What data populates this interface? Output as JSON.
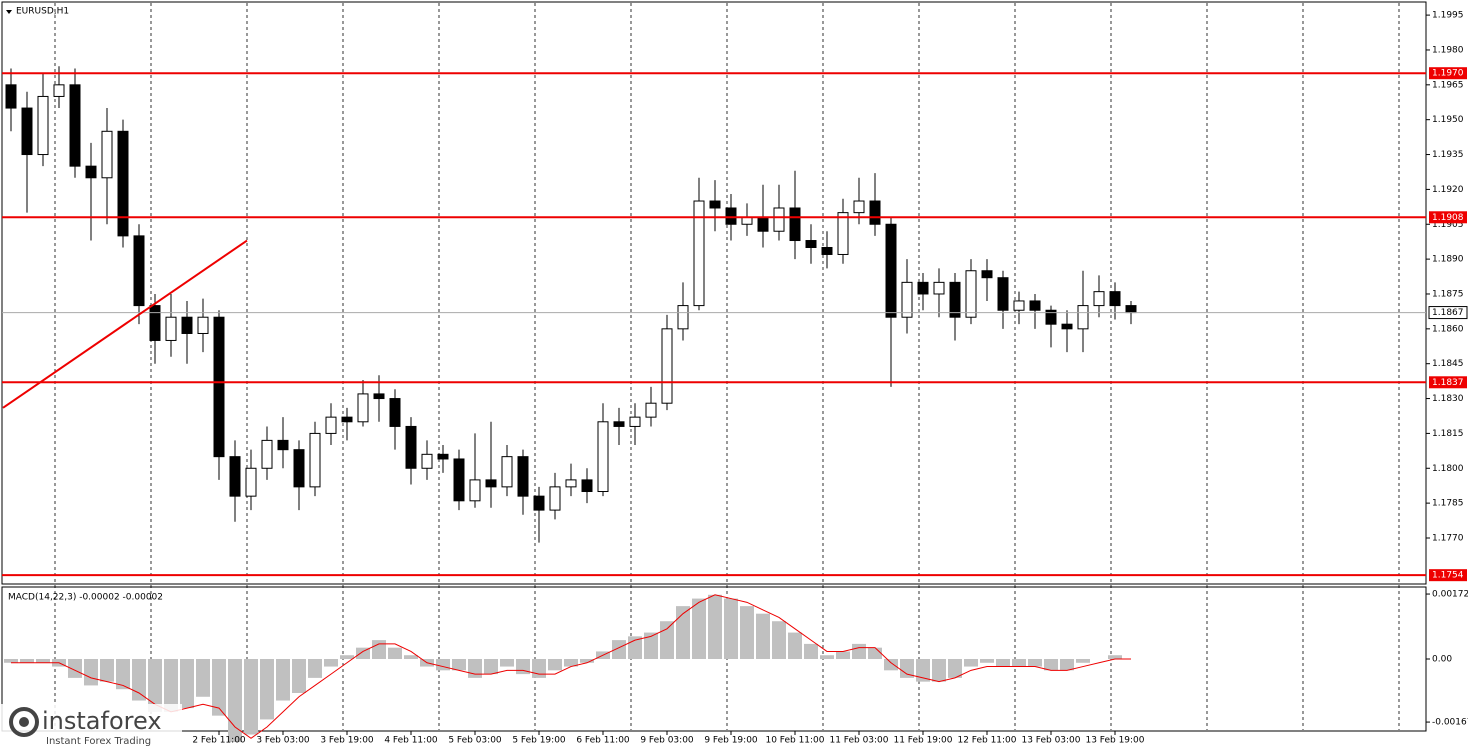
{
  "watermark": {
    "brand": "instaforex",
    "tagline": "Instant Forex Trading"
  },
  "chart_data": [
    {
      "type": "candlestick",
      "title": "EURUSD,H1",
      "x": [
        0,
        4,
        8,
        12,
        16,
        20,
        24,
        28,
        32,
        36,
        40,
        44,
        48,
        52,
        56,
        60,
        64,
        68,
        72,
        76,
        80,
        84,
        88,
        92,
        96,
        100,
        104,
        108,
        112,
        116,
        120,
        124,
        128,
        132,
        136,
        140,
        144,
        148,
        152,
        156,
        160,
        164,
        168,
        172,
        176,
        180,
        184,
        188,
        192,
        196,
        200,
        204,
        208,
        212,
        216,
        220,
        224,
        228,
        232,
        236,
        240,
        244,
        248,
        252,
        256,
        260,
        264,
        268,
        272,
        276,
        280
      ],
      "open": [
        1.1965,
        1.1955,
        1.1935,
        1.196,
        1.1965,
        1.193,
        1.1925,
        1.1945,
        1.19,
        1.187,
        1.1855,
        1.1865,
        1.1858,
        1.1865,
        1.1805,
        1.1788,
        1.18,
        1.1812,
        1.1808,
        1.1792,
        1.1815,
        1.1822,
        1.182,
        1.1832,
        1.183,
        1.1818,
        1.18,
        1.1806,
        1.1804,
        1.1786,
        1.1795,
        1.1792,
        1.1805,
        1.1788,
        1.1782,
        1.1792,
        1.1795,
        1.179,
        1.182,
        1.1818,
        1.1822,
        1.1828,
        1.186,
        1.187,
        1.1915,
        1.1912,
        1.1905,
        1.1908,
        1.1902,
        1.1912,
        1.1898,
        1.1895,
        1.1892,
        1.191,
        1.1915,
        1.1905,
        1.1865,
        1.188,
        1.1875,
        1.188,
        1.1865,
        1.1885,
        1.1882,
        1.1868,
        1.1872,
        1.1868,
        1.1862,
        1.186,
        1.187,
        1.1876,
        1.187
      ],
      "high": [
        1.1972,
        1.1962,
        1.197,
        1.1973,
        1.1972,
        1.194,
        1.1955,
        1.195,
        1.1905,
        1.1875,
        1.1875,
        1.1872,
        1.1873,
        1.1868,
        1.1812,
        1.1808,
        1.1818,
        1.1822,
        1.1812,
        1.182,
        1.1828,
        1.1826,
        1.1838,
        1.184,
        1.1834,
        1.1822,
        1.1812,
        1.181,
        1.1808,
        1.1815,
        1.182,
        1.181,
        1.1808,
        1.1792,
        1.1798,
        1.1802,
        1.18,
        1.1828,
        1.1826,
        1.1828,
        1.1835,
        1.1866,
        1.188,
        1.1925,
        1.1924,
        1.1918,
        1.1914,
        1.1922,
        1.1922,
        1.1928,
        1.1905,
        1.1902,
        1.1916,
        1.1925,
        1.1927,
        1.1908,
        1.189,
        1.1884,
        1.1886,
        1.1884,
        1.189,
        1.189,
        1.1885,
        1.1876,
        1.1875,
        1.187,
        1.1868,
        1.1885,
        1.1883,
        1.188,
        1.1872
      ],
      "low": [
        1.1945,
        1.191,
        1.193,
        1.1955,
        1.1925,
        1.1898,
        1.1905,
        1.1895,
        1.1862,
        1.1845,
        1.1848,
        1.1845,
        1.185,
        1.1795,
        1.1777,
        1.1782,
        1.1795,
        1.18,
        1.1782,
        1.1788,
        1.181,
        1.1812,
        1.1818,
        1.182,
        1.1808,
        1.1793,
        1.1795,
        1.1798,
        1.1782,
        1.1783,
        1.1783,
        1.1788,
        1.178,
        1.1768,
        1.1778,
        1.1788,
        1.1785,
        1.1788,
        1.181,
        1.181,
        1.1818,
        1.1825,
        1.1855,
        1.1868,
        1.1902,
        1.1898,
        1.19,
        1.1895,
        1.1898,
        1.189,
        1.1888,
        1.1886,
        1.1888,
        1.1905,
        1.19,
        1.1835,
        1.1858,
        1.1868,
        1.1865,
        1.1855,
        1.1862,
        1.1872,
        1.186,
        1.1862,
        1.186,
        1.1852,
        1.185,
        1.185,
        1.1865,
        1.1864,
        1.1862
      ],
      "close": [
        1.1955,
        1.1935,
        1.196,
        1.1965,
        1.193,
        1.1925,
        1.1945,
        1.19,
        1.187,
        1.1855,
        1.1865,
        1.1858,
        1.1865,
        1.1805,
        1.1788,
        1.18,
        1.1812,
        1.1808,
        1.1792,
        1.1815,
        1.1822,
        1.182,
        1.1832,
        1.183,
        1.1818,
        1.18,
        1.1806,
        1.1804,
        1.1786,
        1.1795,
        1.1792,
        1.1805,
        1.1788,
        1.1782,
        1.1792,
        1.1795,
        1.179,
        1.182,
        1.1818,
        1.1822,
        1.1828,
        1.186,
        1.187,
        1.1915,
        1.1912,
        1.1905,
        1.1908,
        1.1902,
        1.1912,
        1.1898,
        1.1895,
        1.1892,
        1.191,
        1.1915,
        1.1905,
        1.1865,
        1.188,
        1.1875,
        1.188,
        1.1865,
        1.1885,
        1.1882,
        1.1868,
        1.1872,
        1.1868,
        1.1862,
        1.186,
        1.187,
        1.1876,
        1.187,
        1.1867
      ],
      "xlim": [
        -2.75,
        353.75
      ],
      "ylim": [
        1.17502,
        1.20015
      ],
      "yticks": [
        1.1995,
        {
          "value": 1.198,
          "label": "1.1980"
        },
        1.1965,
        {
          "value": 1.195,
          "label": "1.1950"
        },
        1.1935,
        {
          "value": 1.192,
          "label": "1.1920"
        },
        1.1905,
        {
          "value": 1.189,
          "label": "1.1890"
        },
        1.1875,
        {
          "value": 1.186,
          "label": "1.1860"
        },
        1.1845,
        {
          "value": 1.183,
          "label": "1.1830"
        },
        1.1815,
        {
          "value": 1.18,
          "label": "1.1800"
        },
        1.1785,
        {
          "value": 1.177,
          "label": "1.1770"
        }
      ],
      "levels": [
        {
          "value": 1.197,
          "label": "1.1970"
        },
        1.1908,
        1.1837,
        1.1754
      ],
      "level_color": "#ee0000",
      "current_price": 1.1867,
      "trendline": {
        "x": [
          -2,
          59
        ],
        "y": [
          1.1826,
          1.1898
        ]
      },
      "grid": true
    },
    {
      "type": "macd",
      "title": "MACD(14,22,3) -0.00002 -0.00002",
      "x": [
        0,
        4,
        8,
        12,
        16,
        20,
        24,
        28,
        32,
        36,
        40,
        44,
        48,
        52,
        56,
        60,
        64,
        68,
        72,
        76,
        80,
        84,
        88,
        92,
        96,
        100,
        104,
        108,
        112,
        116,
        120,
        124,
        128,
        132,
        136,
        140,
        144,
        148,
        152,
        156,
        160,
        164,
        168,
        172,
        176,
        180,
        184,
        188,
        192,
        196,
        200,
        204,
        208,
        212,
        216,
        220,
        224,
        228,
        232,
        236,
        240,
        244,
        248,
        252,
        256,
        260,
        264,
        268,
        272,
        276,
        280
      ],
      "values": [
        -0.0001,
        -0.0001,
        -0.0001,
        -0.0002,
        -0.0005,
        -0.0007,
        -0.0006,
        -0.0008,
        -0.0011,
        -0.0014,
        -0.0014,
        -0.0013,
        -0.001,
        -0.0015,
        -0.0022,
        -0.002,
        -0.0016,
        -0.0011,
        -0.0009,
        -0.0005,
        -0.0002,
        0.0001,
        0.0003,
        0.0005,
        0.0003,
        0.0001,
        -0.0002,
        -0.0003,
        -0.0003,
        -0.0005,
        -0.0004,
        -0.0002,
        -0.0004,
        -0.0005,
        -0.0003,
        -0.0002,
        -0.0001,
        0.0002,
        0.0005,
        0.0006,
        0.0007,
        0.001,
        0.0014,
        0.0016,
        0.0017,
        0.0016,
        0.0014,
        0.0012,
        0.001,
        0.0007,
        0.0004,
        0.0001,
        0.0002,
        0.0004,
        0.0003,
        -0.0003,
        -0.0005,
        -0.0006,
        -0.0006,
        -0.0005,
        -0.0002,
        -0.0001,
        -0.0002,
        -0.0002,
        -0.0002,
        -0.0003,
        -0.0003,
        -0.0001,
        0,
        0.0001,
        0
      ],
      "signal": [
        -0.0001,
        -0.0001,
        -0.0001,
        -0.0001,
        -0.0003,
        -0.0005,
        -0.0006,
        -0.0007,
        -0.0009,
        -0.0012,
        -0.0014,
        -0.0013,
        -0.0012,
        -0.0013,
        -0.0018,
        -0.0021,
        -0.0018,
        -0.0014,
        -0.001,
        -0.0007,
        -0.0004,
        -0.0001,
        0.0002,
        0.0004,
        0.0004,
        0.0002,
        -0.0001,
        -0.0002,
        -0.0003,
        -0.0004,
        -0.0004,
        -0.0003,
        -0.0003,
        -0.0004,
        -0.0004,
        -0.0002,
        -0.0001,
        0.0001,
        0.0003,
        0.0005,
        0.0006,
        0.0008,
        0.0012,
        0.0015,
        0.0017,
        0.0016,
        0.0015,
        0.0013,
        0.0011,
        0.0008,
        0.0005,
        0.0002,
        0.0002,
        0.0003,
        0.0003,
        -0.0001,
        -0.0004,
        -0.0005,
        -0.0006,
        -0.0005,
        -0.0003,
        -0.0002,
        -0.0002,
        -0.0002,
        -0.0002,
        -0.0003,
        -0.0003,
        -0.0002,
        -0.0001,
        0,
        0
      ],
      "hist_color": "#c0c0c0",
      "signal_color": "#ee0000",
      "xlim": [
        -2.75,
        353.75
      ],
      "ylim": [
        -0.00188,
        0.00188
      ],
      "yticks": [
        0.00172,
        {
          "value": 0,
          "label": "0.00"
        },
        -0.00167
      ],
      "xticks": [
        {
          "value": 52,
          "label": "2 Feb 11:00"
        },
        {
          "value": 68,
          "label": "3 Feb 03:00"
        },
        {
          "value": 84,
          "label": "3 Feb 19:00"
        },
        {
          "value": 100,
          "label": "4 Feb 11:00"
        },
        {
          "value": 116,
          "label": "5 Feb 03:00"
        },
        {
          "value": 132,
          "label": "5 Feb 19:00"
        },
        {
          "value": 148,
          "label": "6 Feb 11:00"
        },
        {
          "value": 164,
          "label": "9 Feb 03:00"
        },
        {
          "value": 180,
          "label": "9 Feb 19:00"
        },
        {
          "value": 196,
          "label": "10 Feb 11:00"
        },
        {
          "value": 212,
          "label": "11 Feb 03:00"
        },
        {
          "value": 228,
          "label": "11 Feb 19:00"
        },
        {
          "value": 244,
          "label": "12 Feb 11:00"
        },
        {
          "value": 260,
          "label": "13 Feb 03:00"
        },
        {
          "value": 276,
          "label": "13 Feb 19:00"
        }
      ]
    }
  ]
}
